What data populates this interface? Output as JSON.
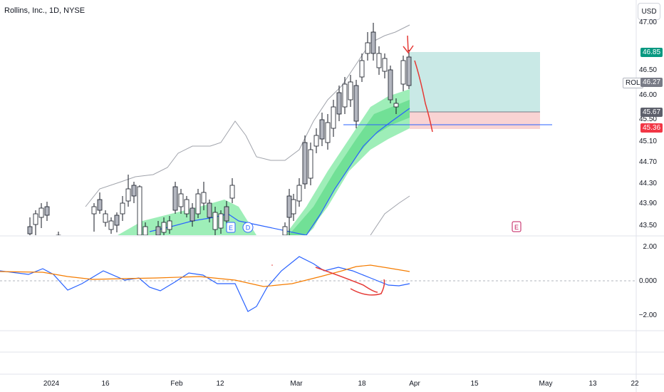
{
  "header": {
    "title": "Rollins, Inc., 1D, NYSE",
    "currency": "USD"
  },
  "price_axis": {
    "labels": [
      "47.00",
      "46.50",
      "46.00",
      "45.50",
      "45.10",
      "44.70",
      "44.30",
      "43.90",
      "43.50"
    ],
    "tags": {
      "target": "46.85",
      "symbol": "ROL",
      "current": "46.27",
      "entry": "45.67",
      "stop": "45.36"
    }
  },
  "oscillator_axis": {
    "labels": [
      "2.00",
      "0.000",
      "−2.00"
    ]
  },
  "time_axis": {
    "labels": [
      "2024",
      "16",
      "Feb",
      "12",
      "Mar",
      "18",
      "Apr",
      "15",
      "May",
      "13",
      "22"
    ]
  },
  "event_markers": {
    "earnings": "E",
    "dividend": "D",
    "upcoming_earnings": "E"
  },
  "colors": {
    "bullish": "#ffffff",
    "bearish": "#b2b5be",
    "band_fill": "#7ee8a0",
    "target_zone": "#b2dfdb",
    "stop_zone": "#f8c8c8",
    "osc_fast": "#2962ff",
    "osc_slow": "#f57c00",
    "annotation": "#e53935"
  }
}
